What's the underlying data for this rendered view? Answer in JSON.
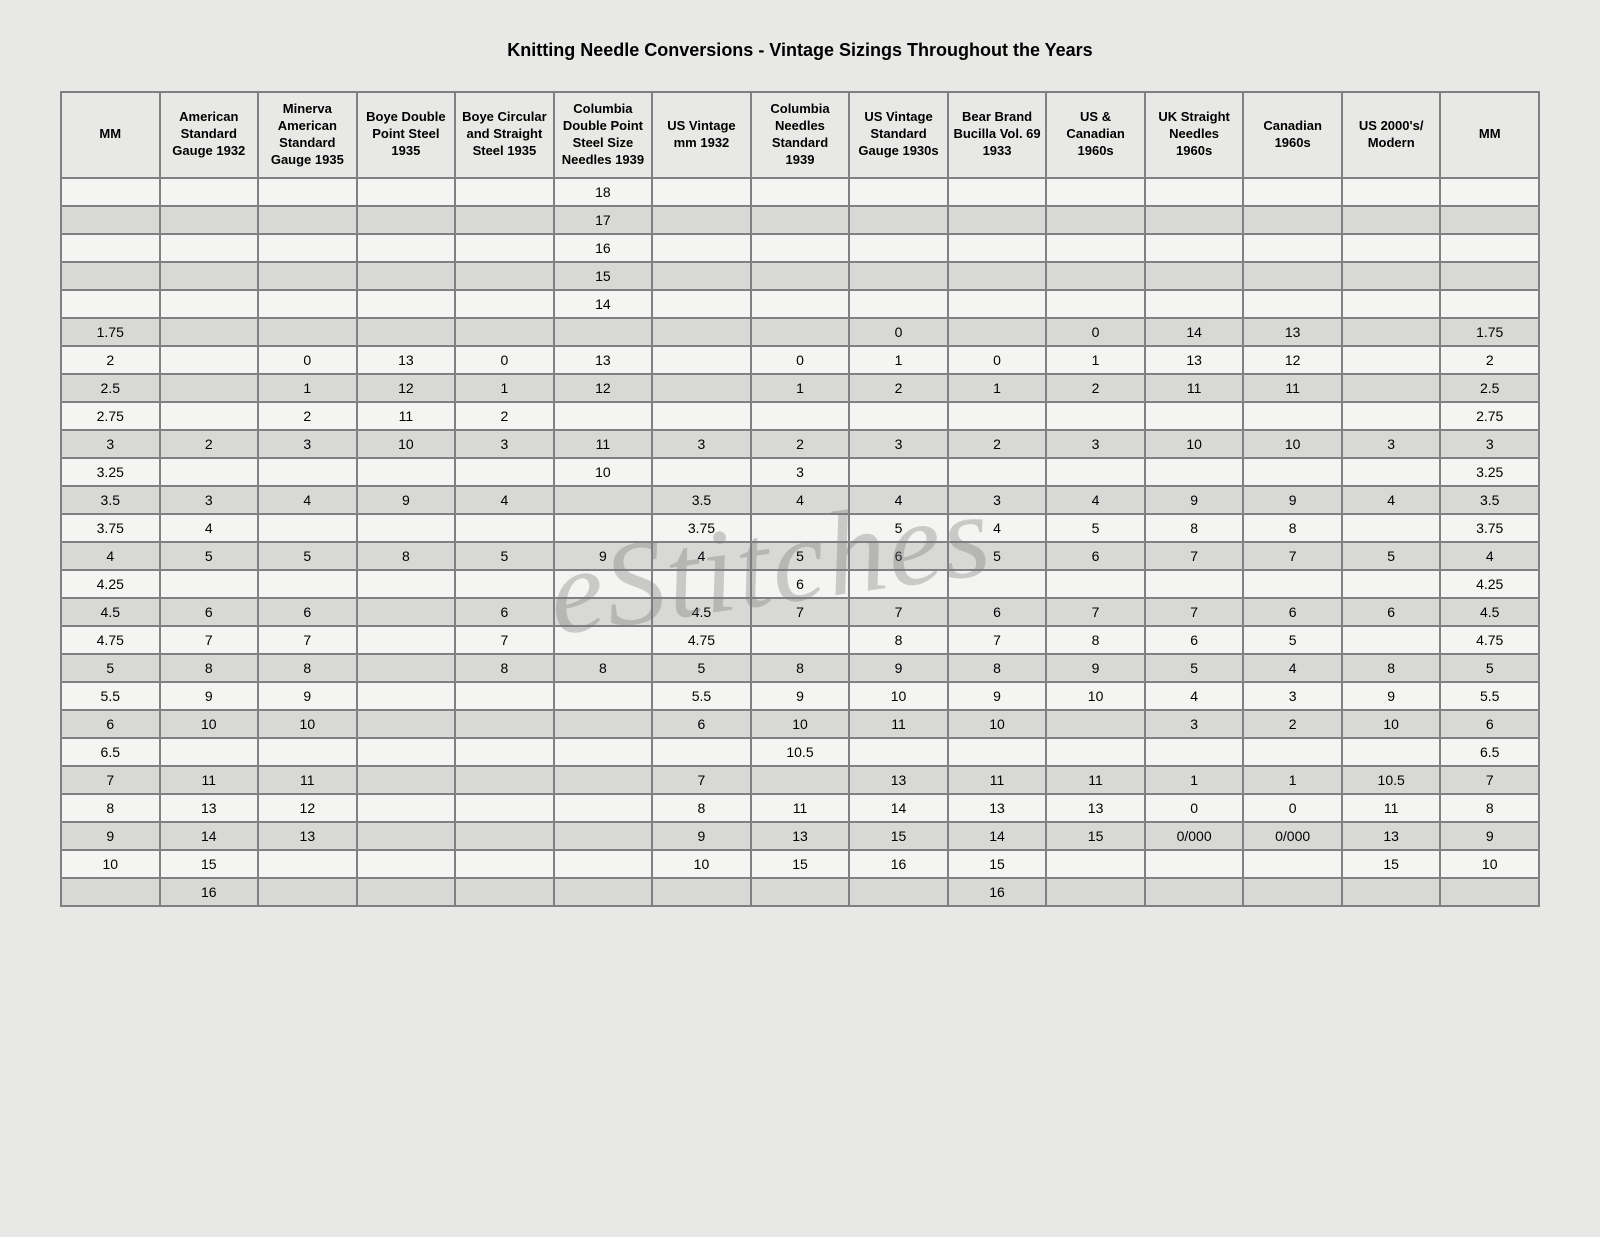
{
  "title": "Knitting Needle Conversions - Vintage Sizings Throughout the Years",
  "watermark": "eStitches",
  "columns": [
    "MM",
    "American Standard Gauge 1932",
    "Minerva American Standard Gauge 1935",
    "Boye Double Point Steel 1935",
    "Boye Circular and Straight Steel 1935",
    "Columbia Double Point Steel Size Needles 1939",
    "US Vintage mm 1932",
    "Columbia Needles Standard 1939",
    "US Vintage Standard Gauge 1930s",
    "Bear Brand Bucilla Vol. 69 1933",
    "US & Canadian 1960s",
    "UK Straight Needles 1960s",
    "Canadian 1960s",
    "US 2000's/ Modern",
    "MM"
  ],
  "rows": [
    [
      "",
      "",
      "",
      "",
      "",
      "18",
      "",
      "",
      "",
      "",
      "",
      "",
      "",
      "",
      ""
    ],
    [
      "",
      "",
      "",
      "",
      "",
      "17",
      "",
      "",
      "",
      "",
      "",
      "",
      "",
      "",
      ""
    ],
    [
      "",
      "",
      "",
      "",
      "",
      "16",
      "",
      "",
      "",
      "",
      "",
      "",
      "",
      "",
      ""
    ],
    [
      "",
      "",
      "",
      "",
      "",
      "15",
      "",
      "",
      "",
      "",
      "",
      "",
      "",
      "",
      ""
    ],
    [
      "",
      "",
      "",
      "",
      "",
      "14",
      "",
      "",
      "",
      "",
      "",
      "",
      "",
      "",
      ""
    ],
    [
      "1.75",
      "",
      "",
      "",
      "",
      "",
      "",
      "",
      "0",
      "",
      "0",
      "14",
      "13",
      "",
      "1.75"
    ],
    [
      "2",
      "",
      "0",
      "13",
      "0",
      "13",
      "",
      "0",
      "1",
      "0",
      "1",
      "13",
      "12",
      "",
      "2"
    ],
    [
      "2.5",
      "",
      "1",
      "12",
      "1",
      "12",
      "",
      "1",
      "2",
      "1",
      "2",
      "11",
      "11",
      "",
      "2.5"
    ],
    [
      "2.75",
      "",
      "2",
      "11",
      "2",
      "",
      "",
      "",
      "",
      "",
      "",
      "",
      "",
      "",
      "2.75"
    ],
    [
      "3",
      "2",
      "3",
      "10",
      "3",
      "11",
      "3",
      "2",
      "3",
      "2",
      "3",
      "10",
      "10",
      "3",
      "3"
    ],
    [
      "3.25",
      "",
      "",
      "",
      "",
      "10",
      "",
      "3",
      "",
      "",
      "",
      "",
      "",
      "",
      "3.25"
    ],
    [
      "3.5",
      "3",
      "4",
      "9",
      "4",
      "",
      "3.5",
      "4",
      "4",
      "3",
      "4",
      "9",
      "9",
      "4",
      "3.5"
    ],
    [
      "3.75",
      "4",
      "",
      "",
      "",
      "",
      "3.75",
      "",
      "5",
      "4",
      "5",
      "8",
      "8",
      "",
      "3.75"
    ],
    [
      "4",
      "5",
      "5",
      "8",
      "5",
      "9",
      "4",
      "5",
      "6",
      "5",
      "6",
      "7",
      "7",
      "5",
      "4"
    ],
    [
      "4.25",
      "",
      "",
      "",
      "",
      "",
      "",
      "6",
      "",
      "",
      "",
      "",
      "",
      "",
      "4.25"
    ],
    [
      "4.5",
      "6",
      "6",
      "",
      "6",
      "",
      "4.5",
      "7",
      "7",
      "6",
      "7",
      "7",
      "6",
      "6",
      "4.5"
    ],
    [
      "4.75",
      "7",
      "7",
      "",
      "7",
      "",
      "4.75",
      "",
      "8",
      "7",
      "8",
      "6",
      "5",
      "",
      "4.75"
    ],
    [
      "5",
      "8",
      "8",
      "",
      "8",
      "8",
      "5",
      "8",
      "9",
      "8",
      "9",
      "5",
      "4",
      "8",
      "5"
    ],
    [
      "5.5",
      "9",
      "9",
      "",
      "",
      "",
      "5.5",
      "9",
      "10",
      "9",
      "10",
      "4",
      "3",
      "9",
      "5.5"
    ],
    [
      "6",
      "10",
      "10",
      "",
      "",
      "",
      "6",
      "10",
      "11",
      "10",
      "",
      "3",
      "2",
      "10",
      "6"
    ],
    [
      "6.5",
      "",
      "",
      "",
      "",
      "",
      "",
      "10.5",
      "",
      "",
      "",
      "",
      "",
      "",
      "6.5"
    ],
    [
      "7",
      "11",
      "11",
      "",
      "",
      "",
      "7",
      "",
      "13",
      "11",
      "11",
      "1",
      "1",
      "10.5",
      "7"
    ],
    [
      "8",
      "13",
      "12",
      "",
      "",
      "",
      "8",
      "11",
      "14",
      "13",
      "13",
      "0",
      "0",
      "11",
      "8"
    ],
    [
      "9",
      "14",
      "13",
      "",
      "",
      "",
      "9",
      "13",
      "15",
      "14",
      "15",
      "0/000",
      "0/000",
      "13",
      "9"
    ],
    [
      "10",
      "15",
      "",
      "",
      "",
      "",
      "10",
      "15",
      "16",
      "15",
      "",
      "",
      "",
      "15",
      "10"
    ],
    [
      "",
      "16",
      "",
      "",
      "",
      "",
      "",
      "",
      "",
      "16",
      "",
      "",
      "",
      "",
      ""
    ]
  ],
  "styles": {
    "background_color": "#e8e8e6",
    "border_color": "#808080",
    "row_even_bg": "#d8d8d6",
    "row_odd_bg": "#f4f4f2",
    "header_bg": "#e8e8e6",
    "title_fontsize": 18,
    "cell_fontsize": 14,
    "header_fontsize": 13,
    "watermark_color": "rgba(120,120,120,0.35)",
    "watermark_fontsize": 120
  }
}
